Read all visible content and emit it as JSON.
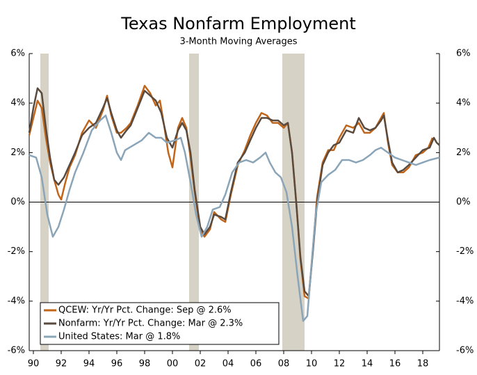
{
  "chart_data": {
    "type": "line",
    "title": "Texas Nonfarm Employment",
    "subtitle": "3-Month Moving Averages",
    "xlim": [
      1989.7,
      2019.2
    ],
    "xticks": [
      {
        "value": 1990,
        "label": "90"
      },
      {
        "value": 1992,
        "label": "92"
      },
      {
        "value": 1994,
        "label": "94"
      },
      {
        "value": 1996,
        "label": "96"
      },
      {
        "value": 1998,
        "label": "98"
      },
      {
        "value": 2000,
        "label": "00"
      },
      {
        "value": 2002,
        "label": "02"
      },
      {
        "value": 2004,
        "label": "04"
      },
      {
        "value": 2006,
        "label": "06"
      },
      {
        "value": 2008,
        "label": "08"
      },
      {
        "value": 2010,
        "label": "10"
      },
      {
        "value": 2012,
        "label": "12"
      },
      {
        "value": 2014,
        "label": "14"
      },
      {
        "value": 2016,
        "label": "16"
      },
      {
        "value": 2018,
        "label": "18"
      }
    ],
    "ylim": [
      -6,
      6
    ],
    "yticks": [
      {
        "value": -6,
        "label": "-6%"
      },
      {
        "value": -4,
        "label": "-4%"
      },
      {
        "value": -2,
        "label": "-2%"
      },
      {
        "value": 0,
        "label": "0%"
      },
      {
        "value": 2,
        "label": "2%"
      },
      {
        "value": 4,
        "label": "4%"
      },
      {
        "value": 6,
        "label": "6%"
      }
    ],
    "y2lim": [
      -6,
      6
    ],
    "y2ticks": [
      {
        "value": -6,
        "label": "-6%"
      },
      {
        "value": -4,
        "label": "-4%"
      },
      {
        "value": -2,
        "label": "-2%"
      },
      {
        "value": 0,
        "label": "0%"
      },
      {
        "value": 2,
        "label": "2%"
      },
      {
        "value": 4,
        "label": "4%"
      },
      {
        "value": 6,
        "label": "6%"
      }
    ],
    "recessions": [
      [
        1990.5,
        1991.1
      ],
      [
        2001.2,
        2001.9
      ],
      [
        2007.9,
        2009.5
      ]
    ],
    "recession_color": "#d6d2c6",
    "legend": "lower-left",
    "series": [
      {
        "name": "QCEW: Yr/Yr Pct. Change: Sep @ 2.6%",
        "color": "#c0651a",
        "x": [
          1989.7,
          1990.0,
          1990.3,
          1990.6,
          1990.9,
          1991.2,
          1991.5,
          1991.8,
          1992.0,
          1992.3,
          1992.6,
          1993.0,
          1993.5,
          1994.0,
          1994.5,
          1995.0,
          1995.3,
          1995.6,
          1996.0,
          1996.3,
          1996.7,
          1997.0,
          1997.5,
          1998.0,
          1998.4,
          1998.8,
          1999.1,
          1999.4,
          1999.7,
          2000.0,
          2000.4,
          2000.7,
          2001.0,
          2001.3,
          2001.6,
          2002.0,
          2002.3,
          2002.7,
          2003.0,
          2003.5,
          2003.8,
          2004.2,
          2004.7,
          2005.2,
          2005.6,
          2006.0,
          2006.4,
          2006.8,
          2007.2,
          2007.6,
          2008.0,
          2008.3,
          2008.6,
          2008.9,
          2009.2,
          2009.5,
          2009.8,
          2010.1,
          2010.4,
          2010.8,
          2011.2,
          2011.6,
          2012.0,
          2012.5,
          2013.0,
          2013.4,
          2013.8,
          2014.2,
          2014.6,
          2015.0,
          2015.2,
          2015.5,
          2015.8,
          2016.2,
          2016.6,
          2017.0,
          2017.5,
          2018.0,
          2018.4,
          2018.7
        ],
        "values": [
          2.7,
          3.4,
          4.1,
          3.8,
          2.6,
          1.6,
          0.9,
          0.3,
          0.1,
          0.8,
          1.4,
          1.9,
          2.8,
          3.3,
          3.0,
          3.7,
          4.3,
          3.5,
          2.8,
          2.8,
          3.0,
          3.2,
          3.9,
          4.7,
          4.4,
          3.9,
          4.1,
          3.1,
          2.0,
          1.4,
          3.0,
          3.4,
          3.0,
          1.8,
          0.4,
          -1.1,
          -1.4,
          -1.1,
          -0.4,
          -0.7,
          -0.8,
          0.3,
          1.5,
          2.1,
          2.7,
          3.2,
          3.6,
          3.5,
          3.2,
          3.2,
          3.0,
          3.2,
          2.0,
          0.0,
          -2.3,
          -3.8,
          -3.9,
          -1.9,
          0.2,
          1.6,
          2.1,
          2.1,
          2.6,
          3.1,
          3.0,
          3.2,
          2.8,
          2.8,
          3.0,
          3.4,
          3.6,
          2.4,
          1.5,
          1.2,
          1.2,
          1.4,
          1.9,
          2.0,
          2.2,
          2.6
        ]
      },
      {
        "name": "Nonfarm: Yr/Yr Pct. Change: Mar @ 2.3%",
        "color": "#5a4a3e",
        "x": [
          1989.7,
          1990.0,
          1990.3,
          1990.6,
          1990.9,
          1991.2,
          1991.5,
          1991.8,
          1992.2,
          1992.6,
          1993.0,
          1993.5,
          1994.0,
          1994.5,
          1995.0,
          1995.3,
          1995.6,
          1996.0,
          1996.3,
          1996.7,
          1997.0,
          1997.5,
          1998.0,
          1998.4,
          1998.8,
          1999.2,
          1999.6,
          2000.0,
          2000.4,
          2000.7,
          2001.0,
          2001.3,
          2001.6,
          2002.0,
          2002.3,
          2002.7,
          2003.0,
          2003.5,
          2003.8,
          2004.2,
          2004.7,
          2005.2,
          2005.6,
          2006.0,
          2006.4,
          2006.8,
          2007.2,
          2007.6,
          2008.0,
          2008.3,
          2008.6,
          2008.9,
          2009.2,
          2009.5,
          2009.8,
          2010.1,
          2010.4,
          2010.8,
          2011.2,
          2011.6,
          2012.0,
          2012.5,
          2013.0,
          2013.4,
          2013.8,
          2014.2,
          2014.6,
          2015.0,
          2015.2,
          2015.5,
          2015.8,
          2016.2,
          2016.6,
          2017.0,
          2017.5,
          2018.0,
          2018.5,
          2018.8,
          2019.0,
          2019.2
        ],
        "values": [
          2.8,
          3.8,
          4.6,
          4.4,
          3.0,
          1.8,
          0.9,
          0.7,
          1.0,
          1.5,
          2.0,
          2.7,
          3.0,
          3.2,
          3.8,
          4.2,
          3.6,
          2.9,
          2.6,
          2.9,
          3.1,
          3.8,
          4.5,
          4.3,
          4.1,
          3.6,
          2.6,
          2.2,
          2.9,
          3.2,
          2.9,
          2.0,
          0.5,
          -1.0,
          -1.3,
          -1.0,
          -0.5,
          -0.6,
          -0.7,
          0.4,
          1.6,
          2.0,
          2.5,
          3.0,
          3.4,
          3.4,
          3.3,
          3.3,
          3.1,
          3.2,
          2.0,
          0.0,
          -2.2,
          -3.6,
          -3.8,
          -2.0,
          0.0,
          1.5,
          2.0,
          2.3,
          2.4,
          2.9,
          2.8,
          3.4,
          3.0,
          2.9,
          3.0,
          3.3,
          3.5,
          2.5,
          1.6,
          1.2,
          1.3,
          1.5,
          1.8,
          2.1,
          2.2,
          2.6,
          2.4,
          2.3
        ]
      },
      {
        "name": "United States: Mar @ 1.8%",
        "color": "#8aa4b8",
        "x": [
          1989.7,
          1990.2,
          1990.6,
          1991.0,
          1991.4,
          1991.8,
          1992.2,
          1992.6,
          1993.0,
          1993.6,
          1994.2,
          1994.8,
          1995.2,
          1995.6,
          1996.0,
          1996.3,
          1996.6,
          1997.2,
          1997.8,
          1998.3,
          1998.8,
          1999.2,
          1999.6,
          2000.2,
          2000.6,
          2000.9,
          2001.3,
          2001.7,
          2002.1,
          2002.5,
          2002.9,
          2003.4,
          2003.8,
          2004.3,
          2004.8,
          2005.3,
          2005.8,
          2006.3,
          2006.7,
          2007.0,
          2007.4,
          2007.8,
          2008.2,
          2008.6,
          2009.0,
          2009.4,
          2009.7,
          2010.0,
          2010.3,
          2010.7,
          2011.2,
          2011.7,
          2012.2,
          2012.7,
          2013.2,
          2013.7,
          2014.2,
          2014.6,
          2015.0,
          2015.5,
          2016.0,
          2016.5,
          2017.0,
          2017.5,
          2018.0,
          2018.5,
          2019.2
        ],
        "values": [
          1.9,
          1.8,
          1.0,
          -0.5,
          -1.4,
          -1.0,
          -0.3,
          0.5,
          1.2,
          2.0,
          2.9,
          3.3,
          3.5,
          2.8,
          2.0,
          1.7,
          2.1,
          2.3,
          2.5,
          2.8,
          2.6,
          2.6,
          2.4,
          2.5,
          2.6,
          2.0,
          0.8,
          -0.5,
          -1.4,
          -1.0,
          -0.3,
          -0.2,
          0.3,
          1.2,
          1.6,
          1.7,
          1.6,
          1.8,
          2.0,
          1.6,
          1.2,
          1.0,
          0.4,
          -1.0,
          -3.0,
          -4.8,
          -4.6,
          -2.5,
          -0.5,
          0.8,
          1.1,
          1.3,
          1.7,
          1.7,
          1.6,
          1.7,
          1.9,
          2.1,
          2.2,
          2.0,
          1.8,
          1.7,
          1.6,
          1.5,
          1.6,
          1.7,
          1.8
        ]
      }
    ]
  }
}
